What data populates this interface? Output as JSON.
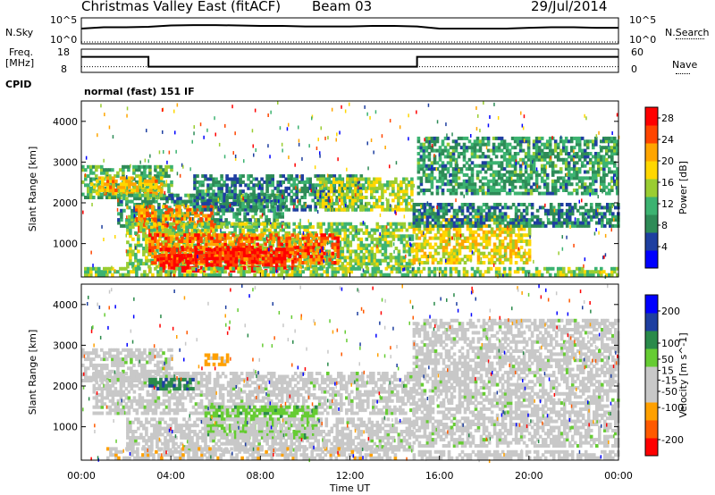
{
  "header": {
    "title": "Christmas Valley East (fitACF)",
    "beam": "Beam 03",
    "date": "29/Jul/2014"
  },
  "strip": {
    "nsky_label": "N.Sky",
    "nsearch_label": "N.Search",
    "nsky_ticks": [
      "10^5",
      "10^0"
    ],
    "nsky_ticks_right": [
      "10^5",
      "10^0"
    ],
    "freq_label": [
      "Freq.",
      "[MHz]"
    ],
    "freq_ticks": [
      "18",
      "8"
    ],
    "nave_label": "Nave",
    "nave_ticks": [
      "60",
      "0"
    ],
    "cpid_label": "CPID",
    "cpid_text": "normal (fast) 151 IF"
  },
  "colors": {
    "power": [
      "#0000ff",
      "#1e3fa0",
      "#2e8b57",
      "#3cb371",
      "#9acd32",
      "#ffd700",
      "#ffa500",
      "#ff4500",
      "#ff0000"
    ],
    "velocity": [
      "#ff0000",
      "#ff5a00",
      "#ffa000",
      "#c8c8c8",
      "#c8c8c8",
      "#66cc33",
      "#2a8a4a",
      "#1e3fa0",
      "#0000ff"
    ]
  },
  "chart_data": [
    {
      "type": "line",
      "x": [
        0,
        1,
        2,
        3,
        4,
        5,
        6,
        7,
        8,
        9,
        10,
        11,
        12,
        13,
        14,
        15,
        16,
        17,
        18,
        19,
        20,
        21,
        22,
        23,
        24
      ],
      "series": [
        {
          "name": "N.Sky",
          "values": [
            1000,
            2000,
            2000,
            2500,
            5000,
            6000,
            6000,
            5000,
            4000,
            4000,
            3000,
            3000,
            3000,
            4000,
            4000,
            3000,
            1000,
            1000,
            1000,
            1000,
            1500,
            2000,
            2000,
            1500,
            1500
          ]
        },
        {
          "name": "N.Search",
          "values": [
            1,
            1,
            1,
            1,
            1,
            1,
            1,
            1,
            1,
            1,
            1,
            1,
            1,
            1,
            1,
            1,
            1,
            1,
            1,
            1,
            1,
            1,
            1,
            1,
            1
          ]
        }
      ],
      "ylim": [
        1,
        100000
      ],
      "log_scale": true
    },
    {
      "type": "line",
      "x": [
        0,
        3,
        3,
        15,
        15,
        24
      ],
      "series": [
        {
          "name": "Freq.",
          "values": [
            15,
            15,
            10,
            10,
            15,
            15
          ]
        },
        {
          "name": "Nave",
          "values": [
            10,
            10,
            10,
            10,
            10,
            10
          ]
        }
      ],
      "ylim": [
        8,
        18
      ]
    },
    {
      "type": "heatmap",
      "variable": "power",
      "xlabel": "",
      "ylabel": "Slant Range [km]",
      "colorbar_label": "Power [dB]",
      "colorbar_ticks": [
        4,
        8,
        12,
        16,
        20,
        24,
        28
      ],
      "colorbar_range": [
        0,
        30
      ],
      "xlim": [
        0,
        24
      ],
      "ylim": [
        180,
        4500
      ],
      "yticks": [
        1000,
        2000,
        3000,
        4000
      ],
      "bands": [
        {
          "t": [
            0.0,
            4.0
          ],
          "r": [
            2100,
            2900
          ],
          "value": 12
        },
        {
          "t": [
            0.4,
            3.6
          ],
          "r": [
            2200,
            2600
          ],
          "value": 20
        },
        {
          "t": [
            1.6,
            9.0
          ],
          "r": [
            1400,
            2200
          ],
          "value": 10
        },
        {
          "t": [
            2.4,
            6.0
          ],
          "r": [
            1200,
            1900
          ],
          "value": 22
        },
        {
          "t": [
            2.0,
            14.8
          ],
          "r": [
            400,
            1500
          ],
          "value": 14
        },
        {
          "t": [
            3.0,
            11.5
          ],
          "r": [
            500,
            1200
          ],
          "value": 24
        },
        {
          "t": [
            3.5,
            9.5
          ],
          "r": [
            300,
            900
          ],
          "value": 28
        },
        {
          "t": [
            5.0,
            12.5
          ],
          "r": [
            1800,
            2700
          ],
          "value": 8
        },
        {
          "t": [
            10.5,
            14.8
          ],
          "r": [
            1800,
            2600
          ],
          "value": 16
        },
        {
          "t": [
            14.8,
            20.0
          ],
          "r": [
            500,
            1700
          ],
          "value": 18
        },
        {
          "t": [
            14.8,
            24.0
          ],
          "r": [
            1400,
            2000
          ],
          "value": 8
        },
        {
          "t": [
            15.0,
            24.0
          ],
          "r": [
            2200,
            3600
          ],
          "value": 10
        },
        {
          "t": [
            0.0,
            24.0
          ],
          "r": [
            200,
            400
          ],
          "value": 14
        }
      ]
    },
    {
      "type": "heatmap",
      "variable": "velocity",
      "xlabel": "Time UT",
      "ylabel": "Slant Range [km]",
      "colorbar_label": "Velocity [m s^-1]",
      "colorbar_ticks": [
        -200,
        -100,
        -50,
        -15,
        15,
        50,
        100,
        200
      ],
      "colorbar_range": [
        -250,
        250
      ],
      "xlim": [
        0,
        24
      ],
      "ylim": [
        180,
        4500
      ],
      "xticks": [
        "00:00",
        "04:00",
        "08:00",
        "12:00",
        "16:00",
        "20:00",
        "00:00"
      ],
      "yticks": [
        1000,
        2000,
        3000,
        4000
      ],
      "bands": [
        {
          "t": [
            0.0,
            4.0
          ],
          "r": [
            2100,
            2900
          ],
          "value": 0
        },
        {
          "t": [
            0.5,
            14.8
          ],
          "r": [
            1300,
            2300
          ],
          "value": 0
        },
        {
          "t": [
            3.0,
            5.0
          ],
          "r": [
            1900,
            2200
          ],
          "value": 120
        },
        {
          "t": [
            5.5,
            10.5
          ],
          "r": [
            700,
            1500
          ],
          "value": 60
        },
        {
          "t": [
            2.0,
            14.8
          ],
          "r": [
            400,
            1200
          ],
          "value": 0
        },
        {
          "t": [
            1.0,
            14.0
          ],
          "r": [
            200,
            500
          ],
          "value": -60
        },
        {
          "t": [
            5.5,
            6.5
          ],
          "r": [
            2500,
            2800
          ],
          "value": -100
        },
        {
          "t": [
            14.8,
            24.0
          ],
          "r": [
            500,
            3600
          ],
          "value": 0
        },
        {
          "t": [
            14.8,
            24.0
          ],
          "r": [
            200,
            400
          ],
          "value": -40
        }
      ]
    }
  ]
}
